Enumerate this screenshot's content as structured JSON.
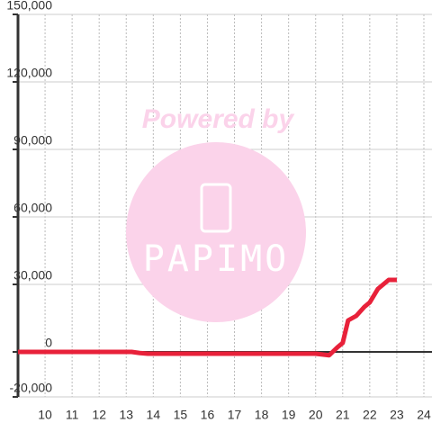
{
  "chart_data": {
    "type": "line",
    "watermark": [
      "Powered by",
      "PAPIMO"
    ],
    "x": [
      9,
      13.2,
      13.5,
      13.8,
      20,
      20.5,
      20.8,
      21,
      21.2,
      21.5,
      21.8,
      22,
      22.3,
      22.7,
      23
    ],
    "series": [
      {
        "color": "#e8213a",
        "values": [
          0,
          0,
          -500,
          -800,
          -800,
          -1500,
          2000,
          4000,
          14000,
          16000,
          20000,
          22000,
          28000,
          32000,
          32000
        ]
      }
    ],
    "xlim": [
      9,
      24.3
    ],
    "xticks": [
      10,
      11,
      12,
      13,
      14,
      15,
      16,
      17,
      18,
      19,
      20,
      21,
      22,
      23,
      24
    ],
    "ylim": [
      -20000,
      150000
    ],
    "yticks": [
      {
        "value": -20000,
        "label": "-20,000"
      },
      0,
      {
        "value": 30000,
        "label": "30,000"
      },
      {
        "value": 60000,
        "label": "60,000"
      },
      {
        "value": 90000,
        "label": "90,000"
      },
      {
        "value": 120000,
        "label": "120,000"
      },
      {
        "value": 150000,
        "label": "150,000"
      }
    ],
    "grid": true
  }
}
